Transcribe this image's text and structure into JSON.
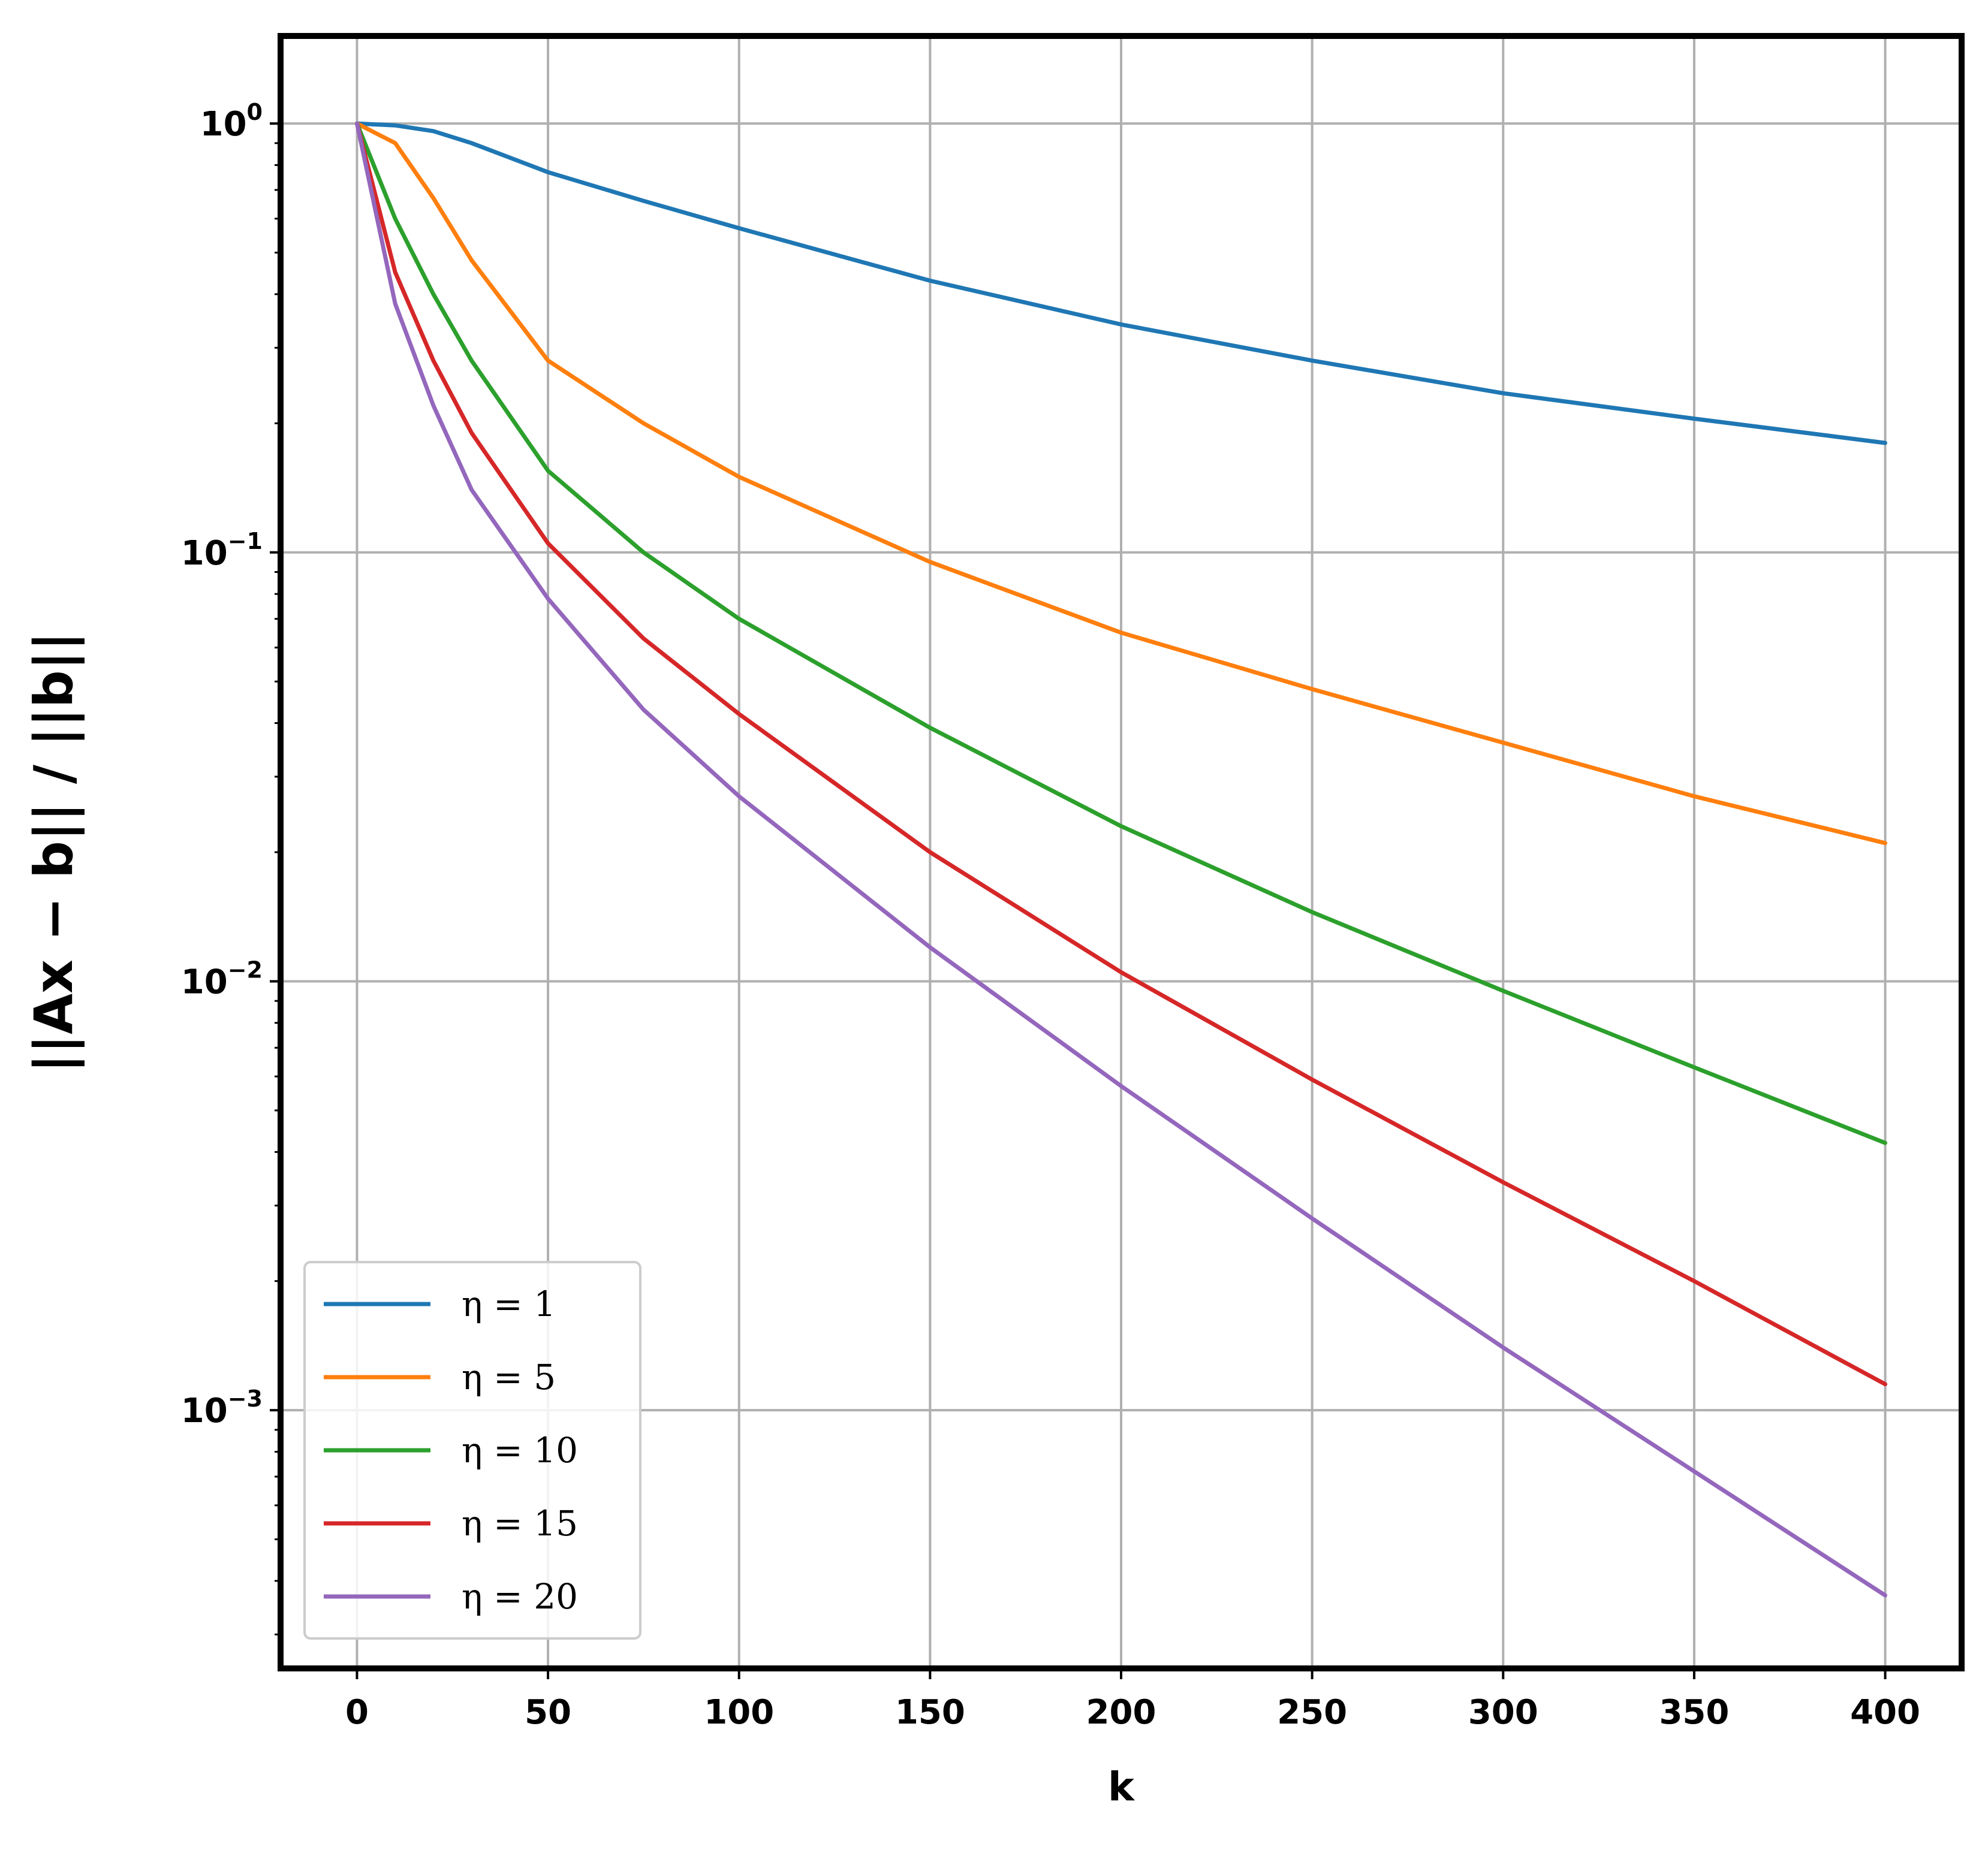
{
  "chart_data": {
    "type": "line",
    "xlabel": "k",
    "ylabel": "||Ax − b|| / ||b||",
    "xscale": "linear",
    "yscale": "log",
    "xlim": [
      -20,
      420
    ],
    "ylim": [
      0.00025,
      1.6
    ],
    "grid": true,
    "legend_position": "lower-left",
    "x_ticks": [
      0,
      50,
      100,
      150,
      200,
      250,
      300,
      350,
      400
    ],
    "y_ticks": [
      {
        "value": 1,
        "base": "10",
        "exp": "0"
      },
      {
        "value": 0.1,
        "base": "10",
        "exp": "−1"
      },
      {
        "value": 0.01,
        "base": "10",
        "exp": "−2"
      },
      {
        "value": 0.001,
        "base": "10",
        "exp": "−3"
      }
    ],
    "x": [
      0,
      10,
      20,
      30,
      50,
      75,
      100,
      150,
      200,
      250,
      300,
      350,
      400
    ],
    "series": [
      {
        "name": "η = 1",
        "color": "#1f77b4",
        "values": [
          1.0,
          0.99,
          0.96,
          0.9,
          0.77,
          0.66,
          0.57,
          0.43,
          0.34,
          0.28,
          0.235,
          0.205,
          0.18
        ]
      },
      {
        "name": "η = 5",
        "color": "#ff7f0e",
        "values": [
          1.0,
          0.9,
          0.67,
          0.48,
          0.28,
          0.2,
          0.15,
          0.095,
          0.065,
          0.048,
          0.036,
          0.027,
          0.021
        ]
      },
      {
        "name": "η = 10",
        "color": "#2ca02c",
        "values": [
          1.0,
          0.6,
          0.4,
          0.28,
          0.155,
          0.1,
          0.07,
          0.039,
          0.023,
          0.0145,
          0.0095,
          0.0063,
          0.0042
        ]
      },
      {
        "name": "η = 15",
        "color": "#d62728",
        "values": [
          1.0,
          0.45,
          0.28,
          0.19,
          0.105,
          0.063,
          0.042,
          0.02,
          0.0105,
          0.0059,
          0.0034,
          0.002,
          0.00115
        ]
      },
      {
        "name": "η = 20",
        "color": "#9467bd",
        "values": [
          1.0,
          0.38,
          0.22,
          0.14,
          0.078,
          0.043,
          0.027,
          0.012,
          0.0057,
          0.0028,
          0.0014,
          0.00072,
          0.00037
        ]
      }
    ]
  }
}
